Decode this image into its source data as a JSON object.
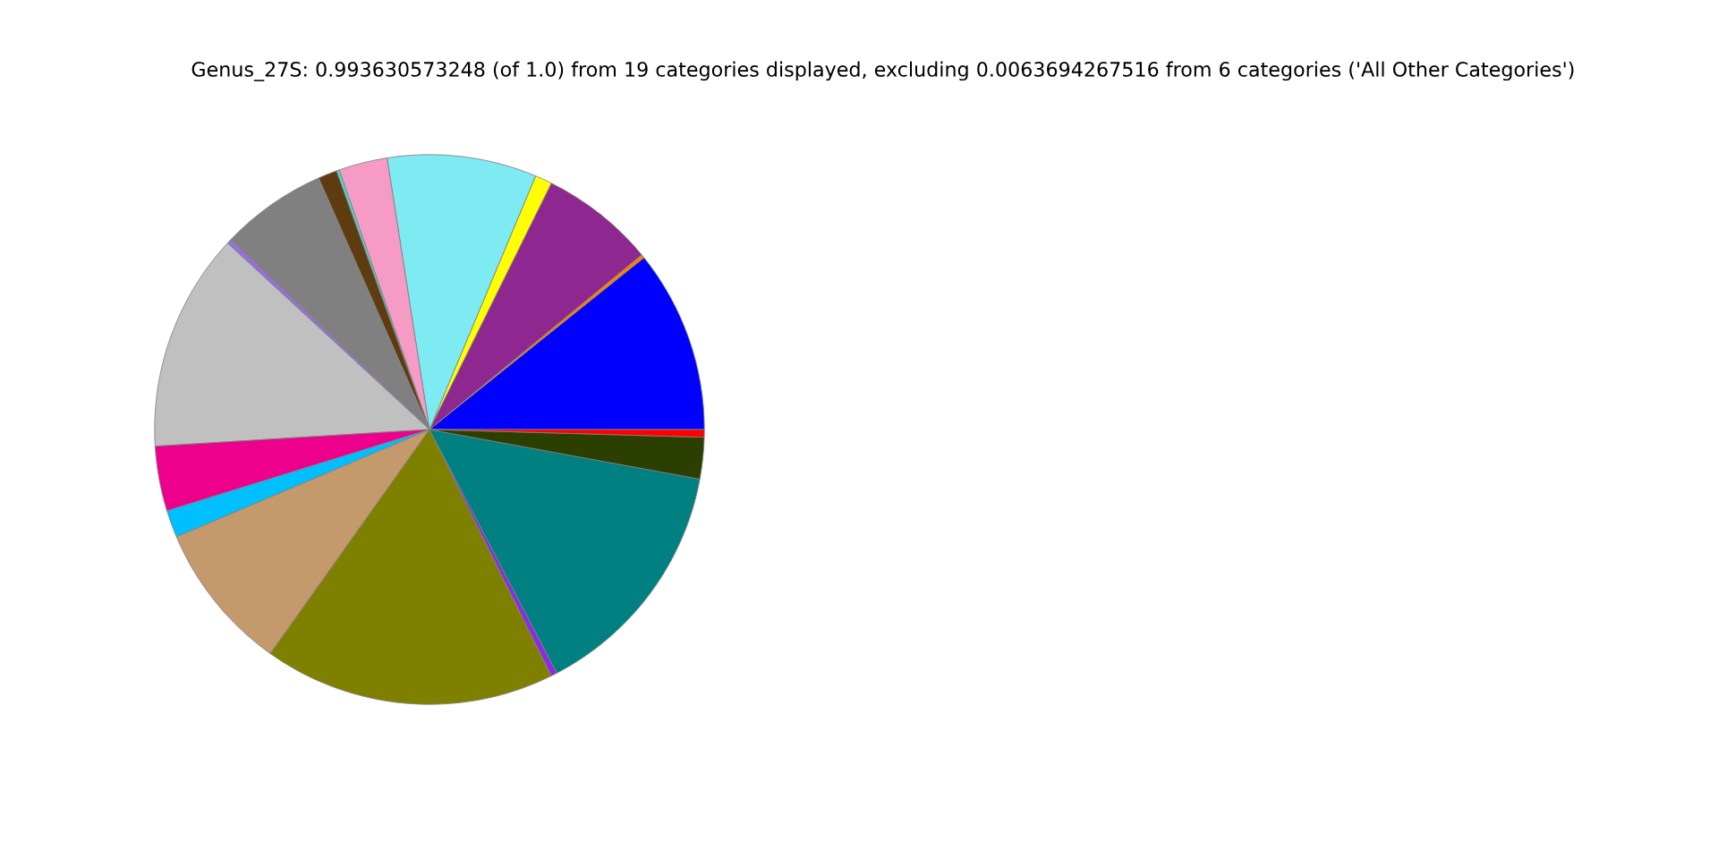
{
  "chart_data": {
    "type": "pie",
    "title": "Genus_27S: 0.993630573248 (of 1.0) from 19 categories displayed, excluding 0.0063694267516 from 6 categories ('All Other Categories')",
    "categories": [
      null,
      null,
      null,
      null,
      null,
      null,
      null,
      null,
      null,
      null,
      null,
      null,
      null,
      null,
      null,
      null,
      null,
      null,
      null
    ],
    "values": [
      10.75,
      0.22,
      6.72,
      1.0,
      8.78,
      2.86,
      0.17,
      1.11,
      6.25,
      0.28,
      12.83,
      3.81,
      1.61,
      8.78,
      17.14,
      0.36,
      14.44,
      2.44,
      0.45
    ],
    "colors": [
      "#0000ff",
      "#ff7f00",
      "#8e278f",
      "#ffff00",
      "#7eeaf2",
      "#f69ac6",
      "#40e0d0",
      "#5f3c10",
      "#808080",
      "#9370db",
      "#c0c0c0",
      "#ec008c",
      "#00bfff",
      "#c49a6c",
      "#808000",
      "#8a2be2",
      "#008080",
      "#2b3f00",
      "#ff0000"
    ]
  }
}
